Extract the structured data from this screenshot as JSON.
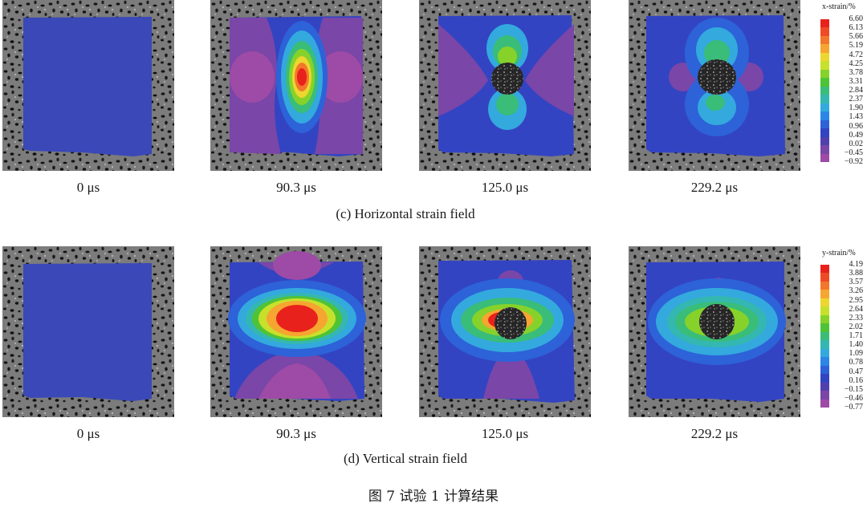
{
  "figure": {
    "row_c": {
      "times": [
        "0 μs",
        "90.3 μs",
        "125.0 μs",
        "229.2 μs"
      ],
      "subcaption": "(c) Horizontal strain field",
      "colorbar": {
        "var": "x",
        "unit": "-strain/%",
        "labels": [
          "6.60",
          "6.13",
          "5.66",
          "5.19",
          "4.72",
          "4.25",
          "3.78",
          "3.31",
          "2.84",
          "2.37",
          "1.90",
          "1.43",
          "0.96",
          "0.49",
          "0.02",
          "−0.45",
          "−0.92"
        ]
      }
    },
    "row_d": {
      "times": [
        "0 μs",
        "90.3 μs",
        "125.0 μs",
        "229.2 μs"
      ],
      "subcaption": "(d) Vertical strain field",
      "colorbar": {
        "var": "y",
        "unit": "-strain/%",
        "labels": [
          "4.19",
          "3.88",
          "3.57",
          "3.26",
          "2.95",
          "2.64",
          "2.33",
          "2.02",
          "1.71",
          "1.40",
          "1.09",
          "0.78",
          "0.47",
          "0.16",
          "−0.15",
          "−0.46",
          "−0.77"
        ]
      }
    },
    "caption": "图 7    试验 1 计算结果",
    "colors": {
      "scale": [
        "#e8211c",
        "#ef4a26",
        "#f2772b",
        "#f6a531",
        "#ecd62f",
        "#c7e02c",
        "#86d22a",
        "#4fc336",
        "#39bd79",
        "#35b7b1",
        "#33a9de",
        "#2b86e6",
        "#2d62d8",
        "#3344c2",
        "#5040ae",
        "#7a46a8",
        "#9d4ba6"
      ],
      "background_field": "#3a48b8",
      "speckle_bg": "#6a6a6a"
    }
  }
}
